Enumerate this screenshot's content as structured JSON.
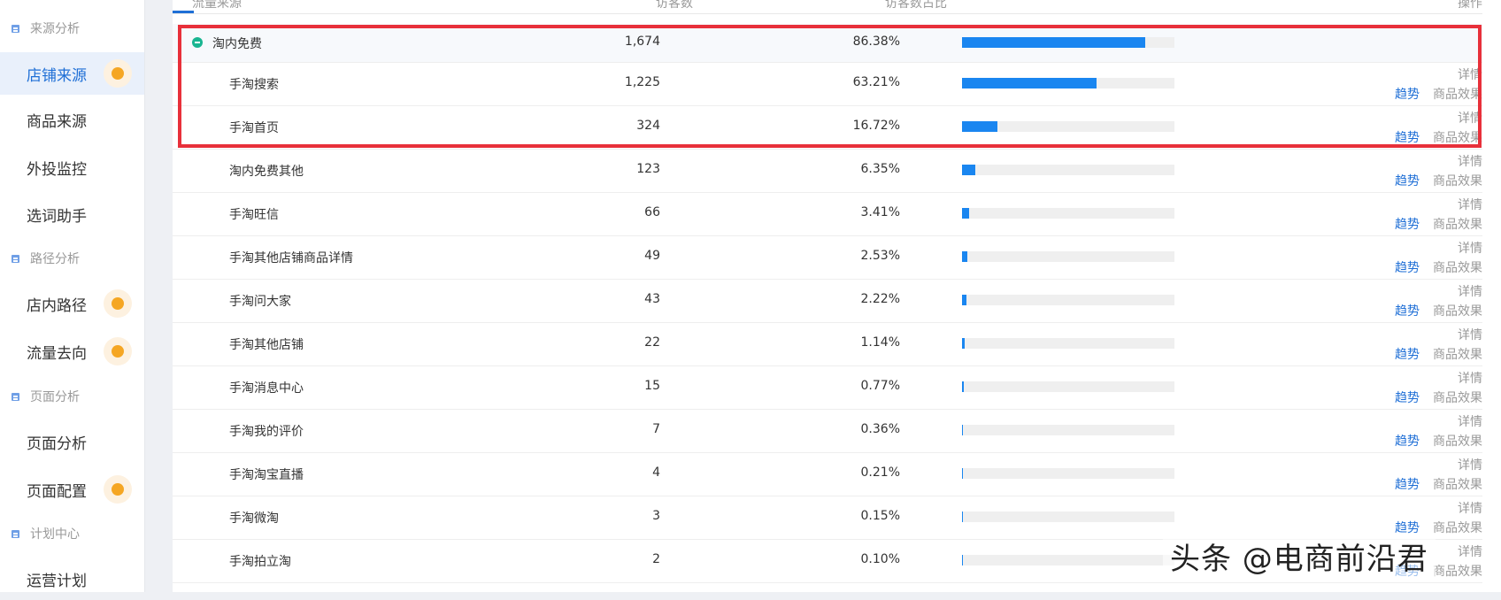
{
  "sidebar": {
    "groups": [
      {
        "label": "来源分析"
      },
      {
        "label": "路径分析"
      },
      {
        "label": "页面分析"
      },
      {
        "label": "计划中心"
      }
    ],
    "items": [
      {
        "label": "店铺来源",
        "active": true,
        "badge": true
      },
      {
        "label": "商品来源"
      },
      {
        "label": "外投监控"
      },
      {
        "label": "选词助手"
      },
      {
        "label": "店内路径",
        "badge": true
      },
      {
        "label": "流量去向",
        "badge": true
      },
      {
        "label": "页面分析"
      },
      {
        "label": "页面配置",
        "badge": true
      },
      {
        "label": "运营计划"
      }
    ]
  },
  "table": {
    "headers": {
      "source": "流量来源",
      "visitors": "访客数",
      "ratio": "访客数占比",
      "ops": "操作"
    },
    "rows": [
      {
        "source": "淘内免费",
        "visitors": "1,674",
        "ratio": "86.38%",
        "ratio_value": 86.38,
        "parent": true
      },
      {
        "source": "手淘搜索",
        "visitors": "1,225",
        "ratio": "63.21%",
        "ratio_value": 63.21
      },
      {
        "source": "手淘首页",
        "visitors": "324",
        "ratio": "16.72%",
        "ratio_value": 16.72
      },
      {
        "source": "淘内免费其他",
        "visitors": "123",
        "ratio": "6.35%",
        "ratio_value": 6.35
      },
      {
        "source": "手淘旺信",
        "visitors": "66",
        "ratio": "3.41%",
        "ratio_value": 3.41
      },
      {
        "source": "手淘其他店铺商品详情",
        "visitors": "49",
        "ratio": "2.53%",
        "ratio_value": 2.53
      },
      {
        "source": "手淘问大家",
        "visitors": "43",
        "ratio": "2.22%",
        "ratio_value": 2.22
      },
      {
        "source": "手淘其他店铺",
        "visitors": "22",
        "ratio": "1.14%",
        "ratio_value": 1.14
      },
      {
        "source": "手淘消息中心",
        "visitors": "15",
        "ratio": "0.77%",
        "ratio_value": 0.77
      },
      {
        "source": "手淘我的评价",
        "visitors": "7",
        "ratio": "0.36%",
        "ratio_value": 0.36
      },
      {
        "source": "手淘淘宝直播",
        "visitors": "4",
        "ratio": "0.21%",
        "ratio_value": 0.21
      },
      {
        "source": "手淘微淘",
        "visitors": "3",
        "ratio": "0.15%",
        "ratio_value": 0.15
      },
      {
        "source": "手淘拍立淘",
        "visitors": "2",
        "ratio": "0.10%",
        "ratio_value": 0.1
      }
    ],
    "actions": {
      "detail": "详情",
      "trend": "趋势",
      "effect": "商品效果"
    }
  },
  "watermark": "头条 @电商前沿君",
  "colors": {
    "accent": "#1f6fd6",
    "bar": "#1a86f0",
    "badge": "#f5a623",
    "highlight": "#e8303a",
    "parent_dot": "#19b591"
  }
}
